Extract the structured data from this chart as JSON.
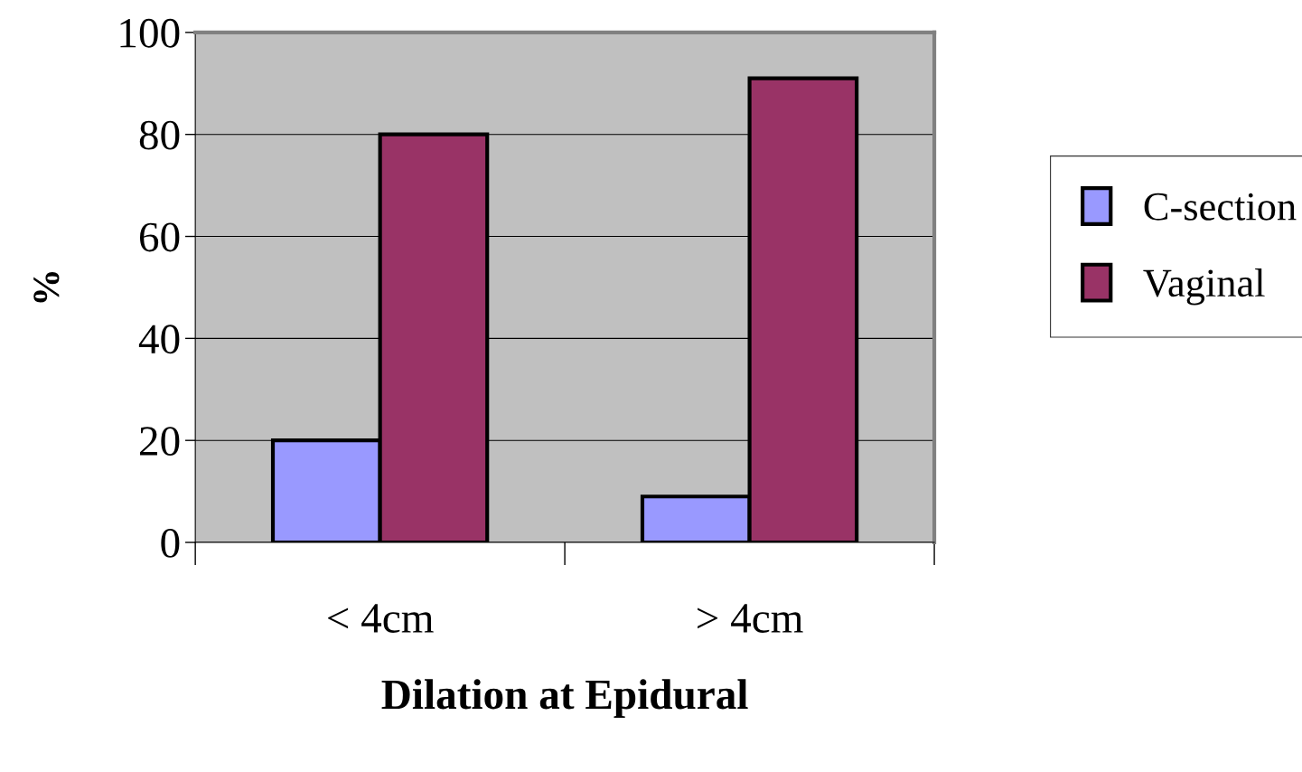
{
  "chart_data": {
    "type": "bar",
    "xlabel": "Dilation at Epidural",
    "ylabel": "%",
    "categories": [
      "< 4cm",
      "> 4cm"
    ],
    "series": [
      {
        "name": "C-section",
        "color": "#9999ff",
        "values": [
          20,
          9
        ]
      },
      {
        "name": "Vaginal",
        "color": "#993366",
        "values": [
          80,
          91
        ]
      }
    ],
    "ylim": [
      0,
      100
    ],
    "yticks": [
      0,
      20,
      40,
      60,
      80,
      100
    ],
    "grid": "y",
    "legend": "right"
  }
}
